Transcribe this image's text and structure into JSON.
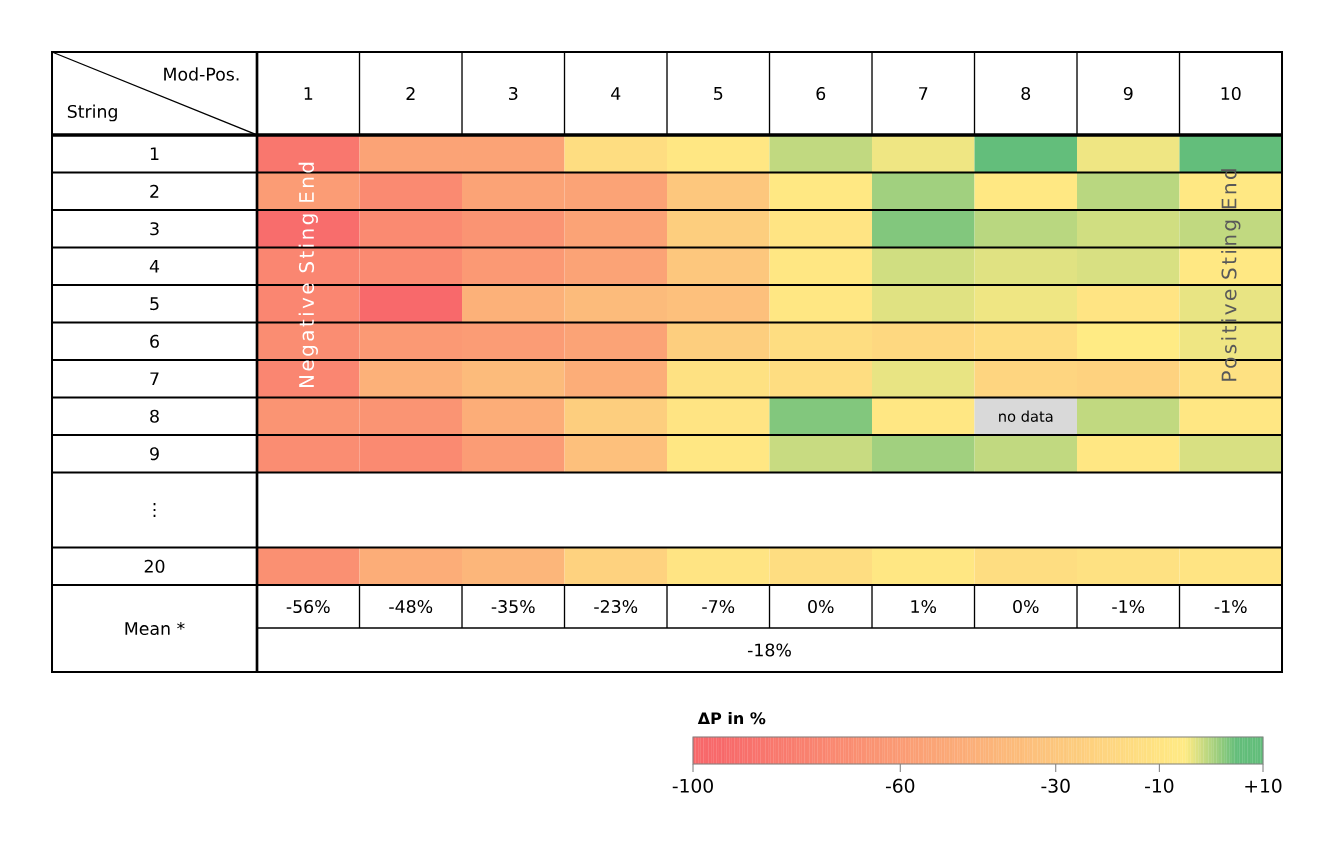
{
  "chart_data": {
    "type": "heatmap",
    "xlabel": "Mod-Pos.",
    "ylabel": "String",
    "clabel": "ΔP in %",
    "categories": [
      "1",
      "2",
      "3",
      "4",
      "5",
      "6",
      "7",
      "8",
      "9",
      "10"
    ],
    "y_categories": [
      "1",
      "2",
      "3",
      "4",
      "5",
      "6",
      "7",
      "8",
      "9",
      "⋮",
      "20"
    ],
    "cells": [
      [
        -85,
        -55,
        -55,
        -15,
        -8,
        -1,
        -4,
        5,
        -4,
        5
      ],
      [
        -60,
        -72,
        -55,
        -55,
        -30,
        -7,
        1,
        -7,
        -0.5,
        -7
      ],
      [
        -92,
        -72,
        -65,
        -55,
        -25,
        -10,
        3,
        -0.5,
        -2,
        -1
      ],
      [
        -75,
        -72,
        -62,
        -55,
        -30,
        -8,
        -2,
        -3,
        -2.5,
        -7
      ],
      [
        -75,
        -95,
        -45,
        -38,
        -35,
        -8,
        -3,
        -4,
        -10,
        -3.5
      ],
      [
        -70,
        -62,
        -60,
        -55,
        -25,
        -15,
        -18,
        -15,
        -5,
        -4
      ],
      [
        -75,
        -45,
        -38,
        -48,
        -12,
        -15,
        -3.5,
        -20,
        -22,
        -12
      ],
      [
        -65,
        -65,
        -48,
        -25,
        -10,
        3,
        -8,
        null,
        -1,
        -8
      ],
      [
        -70,
        -72,
        -60,
        -35,
        -8,
        -1.5,
        1,
        -1,
        -8,
        -2.5
      ],
      [
        null,
        null,
        null,
        null,
        null,
        null,
        null,
        null,
        null,
        null
      ],
      [
        -68,
        -48,
        -42,
        -22,
        -10,
        -15,
        -8,
        -15,
        -12,
        -10
      ]
    ],
    "cell_labels": [
      [
        null,
        null,
        null,
        null,
        null,
        null,
        null,
        null,
        null,
        null
      ],
      [
        null,
        null,
        null,
        null,
        null,
        null,
        null,
        null,
        null,
        null
      ],
      [
        null,
        null,
        null,
        null,
        null,
        null,
        null,
        null,
        null,
        null
      ],
      [
        null,
        null,
        null,
        null,
        null,
        null,
        null,
        null,
        null,
        null
      ],
      [
        null,
        null,
        null,
        null,
        null,
        null,
        null,
        null,
        null,
        null
      ],
      [
        null,
        null,
        null,
        null,
        null,
        null,
        null,
        null,
        null,
        null
      ],
      [
        null,
        null,
        null,
        null,
        null,
        null,
        null,
        null,
        null,
        null
      ],
      [
        null,
        null,
        null,
        null,
        null,
        null,
        null,
        "no data",
        null,
        null
      ],
      [
        null,
        null,
        null,
        null,
        null,
        null,
        null,
        null,
        null,
        null
      ],
      [
        null,
        null,
        null,
        null,
        null,
        null,
        null,
        null,
        null,
        null
      ],
      [
        null,
        null,
        null,
        null,
        null,
        null,
        null,
        null,
        null,
        null
      ]
    ],
    "clim": [
      -100,
      10
    ],
    "cticks": [
      -100,
      -60,
      -30,
      -10,
      {
        "value": 10,
        "label": "+10"
      }
    ],
    "annotations": [
      "Negative Sting End",
      "Positive Sting End",
      "Mean *",
      "-56%",
      "-48%",
      "-35%",
      "-23%",
      "-7%",
      "0%",
      "1%",
      "0%",
      "-1%",
      "-1%",
      "-18%"
    ]
  }
}
